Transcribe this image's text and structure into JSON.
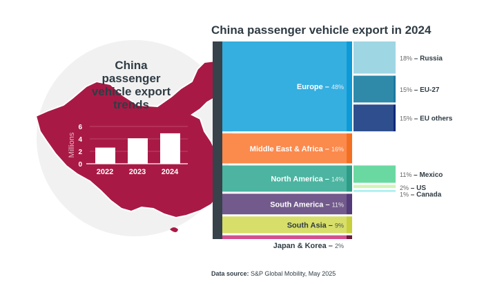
{
  "title": "China passenger vehicle export in 2024",
  "source_label": "Data source:",
  "source_text": "S&P Global Mobility, May 2025",
  "chart_data": [
    {
      "type": "bar",
      "title": "China passenger vehicle export trends",
      "ylabel": "Millions",
      "categories": [
        "2022",
        "2023",
        "2024"
      ],
      "values": [
        2.6,
        4.1,
        4.9
      ],
      "ylim": [
        0,
        6
      ],
      "yticks": [
        0,
        2,
        4,
        6
      ],
      "grid": true,
      "bar_color": "#ffffff",
      "background_color": "#a81a45"
    },
    {
      "type": "treemap",
      "title": "China passenger vehicle export in 2024",
      "regions": [
        {
          "name": "Europe",
          "value": 48,
          "color": "#35aee0",
          "accent": "#0e9ad6",
          "label_color": "#ffffff",
          "children": [
            {
              "name": "Russia",
              "value": 18,
              "color": "#9fd6e3",
              "accent": "#9fd6e3"
            },
            {
              "name": "EU-27",
              "value": 15,
              "color": "#2f8aaa",
              "accent": "#1d77a0"
            },
            {
              "name": "EU others",
              "value": 15,
              "color": "#2f4e8d",
              "accent": "#12287a"
            }
          ]
        },
        {
          "name": "Middle East & Africa",
          "value": 16,
          "color": "#fb8a4d",
          "accent": "#f26f22",
          "label_color": "#ffffff",
          "children": []
        },
        {
          "name": "North America",
          "value": 14,
          "color": "#4cb4a1",
          "accent": "#2d9c87",
          "label_color": "#ffffff",
          "children": [
            {
              "name": "Mexico",
              "value": 11,
              "color": "#6ad9a1",
              "accent": "#6ad9a1"
            },
            {
              "name": "US",
              "value": 2,
              "color": "#cff5b8",
              "accent": "#cff5b8"
            },
            {
              "name": "Canada",
              "value": 1,
              "color": "#a6eef0",
              "accent": "#a6eef0"
            }
          ]
        },
        {
          "name": "South America",
          "value": 11,
          "color": "#725a8c",
          "accent": "#533a79",
          "label_color": "#ffffff",
          "children": []
        },
        {
          "name": "South Asia",
          "value": 9,
          "color": "#d8de6a",
          "accent": "#c7cf3c",
          "label_color": "#2f3c44",
          "children": []
        },
        {
          "name": "Japan & Korea",
          "value": 2,
          "color": "#d2508d",
          "accent": "#6a1b3b",
          "label_color": "#2f3c44",
          "children": []
        }
      ]
    }
  ],
  "colors": {
    "map": "#a81a45",
    "circle": "#f1f1f1",
    "text": "#2f3c44",
    "spine": "#37424a"
  }
}
